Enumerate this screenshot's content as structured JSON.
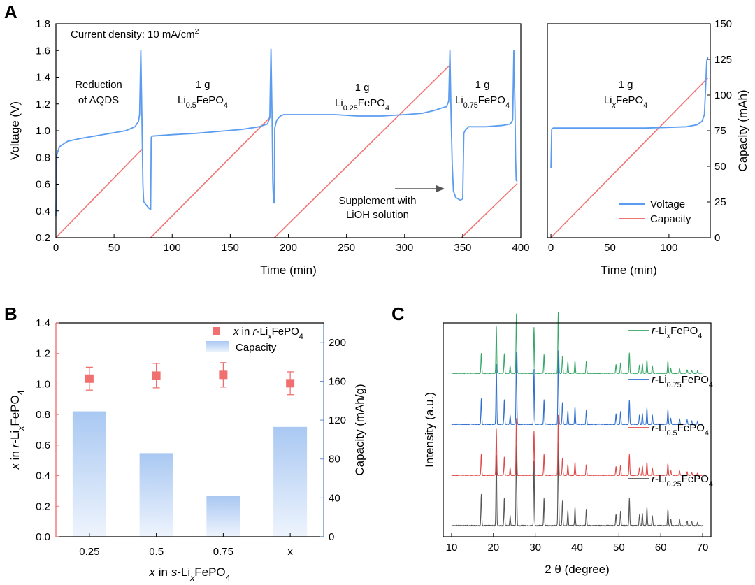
{
  "panels": {
    "A": "A",
    "B": "B",
    "C": "C"
  },
  "chart_data": [
    {
      "panel": "A",
      "type": "line",
      "xlabel": "Time (min)",
      "ylabel": "Voltage (V)",
      "y2label": "Capacity (mAh)",
      "xlim": [
        0,
        400
      ],
      "ylim": [
        0.2,
        1.8
      ],
      "y2lim": [
        0,
        150
      ],
      "xticks": [
        "0",
        "50",
        "100",
        "150",
        "200",
        "250",
        "300",
        "350",
        "400"
      ],
      "yticks": [
        "0.2",
        "0.4",
        "0.6",
        "0.8",
        "1.0",
        "1.2",
        "1.4",
        "1.6",
        "1.8"
      ],
      "y2ticks": [
        "0",
        "25",
        "50",
        "75",
        "100",
        "125",
        "150"
      ],
      "annotation": "Current density: 10 mA/cm",
      "annotation_sup": "2",
      "segment_labels": [
        {
          "line1": "Reduction",
          "line2": "of AQDS"
        },
        {
          "line1": "1 g",
          "line2_main": "Li",
          "line2_sub": "0.5",
          "line2_end": "FePO",
          "line2_sub2": "4"
        },
        {
          "line1": "1 g",
          "line2_main": "Li",
          "line2_sub": "0.25",
          "line2_end": "FePO",
          "line2_sub2": "4"
        },
        {
          "line1": "1 g",
          "line2_main": "Li",
          "line2_sub": "0.75",
          "line2_end": "FePO",
          "line2_sub2": "4"
        }
      ],
      "arrow_label": [
        "Supplement with",
        "LiOH solution"
      ],
      "series": [
        {
          "name": "Voltage",
          "color": "#5b9cf0",
          "axis": "left",
          "points": [
            [
              0,
              0.36
            ],
            [
              0.8,
              0.82
            ],
            [
              3,
              0.88
            ],
            [
              10,
              0.92
            ],
            [
              20,
              0.94
            ],
            [
              30,
              0.955
            ],
            [
              40,
              0.97
            ],
            [
              50,
              0.985
            ],
            [
              60,
              1.0
            ],
            [
              68,
              1.03
            ],
            [
              71,
              1.07
            ],
            [
              72,
              1.12
            ],
            [
              73,
              1.6
            ],
            [
              74,
              1.1
            ],
            [
              74.8,
              0.6
            ],
            [
              75.5,
              0.47
            ],
            [
              78,
              0.44
            ],
            [
              80,
              0.42
            ],
            [
              81.5,
              0.41
            ],
            [
              82,
              0.95
            ],
            [
              83,
              0.96
            ],
            [
              100,
              0.97
            ],
            [
              120,
              0.98
            ],
            [
              140,
              0.995
            ],
            [
              160,
              1.01
            ],
            [
              175,
              1.03
            ],
            [
              182,
              1.05
            ],
            [
              184,
              1.1
            ],
            [
              185,
              1.61
            ],
            [
              186,
              1.1
            ],
            [
              186.6,
              0.62
            ],
            [
              187.2,
              0.47
            ],
            [
              187.8,
              0.46
            ],
            [
              188.3,
              1.02
            ],
            [
              190,
              1.08
            ],
            [
              193,
              1.11
            ],
            [
              196,
              1.12
            ],
            [
              220,
              1.12
            ],
            [
              240,
              1.12
            ],
            [
              260,
              1.11
            ],
            [
              280,
              1.11
            ],
            [
              300,
              1.12
            ],
            [
              315,
              1.13
            ],
            [
              325,
              1.15
            ],
            [
              332,
              1.17
            ],
            [
              336,
              1.18
            ],
            [
              338,
              1.22
            ],
            [
              339,
              1.6
            ],
            [
              340,
              1.1
            ],
            [
              341,
              0.75
            ],
            [
              342,
              0.55
            ],
            [
              344,
              0.5
            ],
            [
              348,
              0.48
            ],
            [
              350,
              0.49
            ],
            [
              351,
              0.98
            ],
            [
              352,
              1.0
            ],
            [
              355,
              1.03
            ],
            [
              370,
              1.03
            ],
            [
              385,
              1.04
            ],
            [
              391,
              1.05
            ],
            [
              393,
              1.08
            ],
            [
              394,
              1.6
            ],
            [
              395,
              1.15
            ],
            [
              395.5,
              0.8
            ],
            [
              396,
              0.63
            ],
            [
              397,
              0.62
            ]
          ]
        },
        {
          "name": "Capacity",
          "color": "#f27575",
          "axis": "right",
          "segments": [
            [
              [
                0,
                0
              ],
              [
                74,
                62
              ]
            ],
            [
              [
                81.5,
                0
              ],
              [
                185,
                85
              ]
            ],
            [
              [
                188,
                0
              ],
              [
                339,
                121
              ]
            ],
            [
              [
                349,
                0
              ],
              [
                397,
                38
              ]
            ]
          ]
        }
      ]
    },
    {
      "panel": "A-right",
      "type": "line",
      "xlabel": "Time (min)",
      "ylabel": "",
      "y2label": "Capacity (mAh)",
      "xlim": [
        -3,
        135
      ],
      "ylim": [
        0.2,
        1.8
      ],
      "y2lim": [
        0,
        150
      ],
      "xticks": [
        "0",
        "50",
        "100"
      ],
      "y2ticks": [
        "0",
        "25",
        "50",
        "75",
        "100",
        "125",
        "150"
      ],
      "segment_label": {
        "line1": "1 g",
        "line2_main": "Li",
        "line2_sub": "x",
        "line2_end": "FePO",
        "line2_sub2": "4"
      },
      "legend": [
        "Voltage",
        "Capacity"
      ],
      "legend_position": "bottom-right",
      "series": [
        {
          "name": "Voltage",
          "color": "#5b9cf0",
          "axis": "left",
          "points": [
            [
              0,
              0.72
            ],
            [
              0.7,
              1.01
            ],
            [
              2,
              1.02
            ],
            [
              20,
              1.02
            ],
            [
              40,
              1.02
            ],
            [
              60,
              1.02
            ],
            [
              80,
              1.02
            ],
            [
              100,
              1.025
            ],
            [
              115,
              1.03
            ],
            [
              124,
              1.045
            ],
            [
              128,
              1.07
            ],
            [
              130,
              1.12
            ],
            [
              131,
              1.3
            ],
            [
              132,
              1.52
            ],
            [
              133,
              1.55
            ]
          ]
        },
        {
          "name": "Capacity",
          "color": "#f27575",
          "axis": "right",
          "segments": [
            [
              [
                0,
                0
              ],
              [
                133,
                112
              ]
            ]
          ]
        }
      ]
    },
    {
      "panel": "B",
      "type": "bar",
      "categories": [
        "0.25",
        "0.5",
        "0.75",
        "x"
      ],
      "xlabel_parts": [
        "x",
        " in ",
        "s",
        "-Li",
        "x",
        "FePO",
        "4"
      ],
      "ylabel_parts": [
        "x",
        " in ",
        "r",
        "-Li",
        "x",
        "FePO",
        "4"
      ],
      "y2label": "Capacity (mAh/g)",
      "ylim": [
        0,
        1.4
      ],
      "y2lim": [
        0,
        220
      ],
      "yticks": [
        "0.0",
        "0.2",
        "0.4",
        "0.6",
        "0.8",
        "1.0",
        "1.2",
        "1.4"
      ],
      "y2ticks": [
        "0",
        "40",
        "80",
        "120",
        "160",
        "200"
      ],
      "left_axis_color": "#f27575",
      "right_axis_color": "#6a8fc8",
      "series": [
        {
          "name": "Capacity",
          "kind": "bar",
          "axis": "right",
          "values": [
            129,
            86,
            42,
            113
          ],
          "color": "#a9c8f2"
        },
        {
          "name": "x in r-LixFePO4",
          "kind": "scatter",
          "axis": "left",
          "values": [
            1.035,
            1.055,
            1.06,
            1.005
          ],
          "errors": [
            0.075,
            0.08,
            0.08,
            0.075
          ],
          "color": "#f07070"
        }
      ],
      "legend": [
        {
          "parts": [
            "x",
            " in ",
            "r",
            "-Li",
            "x",
            "FePO",
            "4"
          ]
        },
        {
          "parts": [
            "Capacity"
          ]
        }
      ],
      "legend_position": "top-right"
    },
    {
      "panel": "C",
      "type": "line",
      "xlabel": "2 θ (degree)",
      "ylabel": "Intensity (a.u.)",
      "xlim": [
        8,
        72
      ],
      "xticks": [
        "10",
        "20",
        "30",
        "40",
        "50",
        "60",
        "70"
      ],
      "peak_positions": [
        17.1,
        20.7,
        22.6,
        24.0,
        25.5,
        29.7,
        32.1,
        35.5,
        36.5,
        37.8,
        39.5,
        42.2,
        49.3,
        50.4,
        52.5,
        54.9,
        55.6,
        56.7,
        58.0,
        61.7,
        62.4,
        64.5,
        66.3,
        67.4,
        68.8
      ],
      "peak_heights": [
        0.38,
        0.85,
        0.33,
        0.12,
        0.97,
        0.78,
        0.33,
        1.0,
        0.3,
        0.18,
        0.22,
        0.2,
        0.14,
        0.17,
        0.33,
        0.13,
        0.15,
        0.22,
        0.12,
        0.2,
        0.08,
        0.07,
        0.06,
        0.05,
        0.04
      ],
      "series": [
        {
          "name_parts": [
            "r",
            "-Li",
            "0.25",
            "FePO",
            "4"
          ],
          "color": "#555555"
        },
        {
          "name_parts": [
            "r",
            "-Li",
            "0.5",
            "FePO",
            "4"
          ],
          "color": "#e04848"
        },
        {
          "name_parts": [
            "r",
            "-Li",
            "0.75",
            "FePO",
            "4"
          ],
          "color": "#2f6fd0"
        },
        {
          "name_parts": [
            "r",
            "-Li",
            "x",
            "FePO",
            "4"
          ],
          "color": "#35a766"
        }
      ]
    }
  ]
}
